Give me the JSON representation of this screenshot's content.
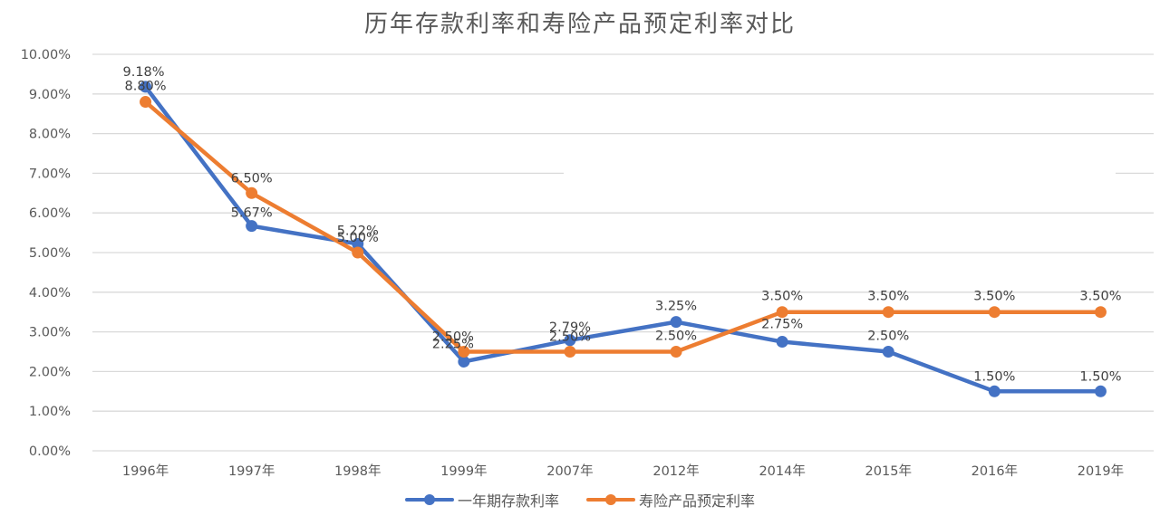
{
  "chart_data": {
    "type": "line",
    "title": "历年存款利率和寿险产品预定利率对比",
    "xlabel": "",
    "ylabel": "",
    "ylim": [
      0,
      0.1
    ],
    "yticks": [
      "0.00%",
      "1.00%",
      "2.00%",
      "3.00%",
      "4.00%",
      "5.00%",
      "6.00%",
      "7.00%",
      "8.00%",
      "9.00%",
      "10.00%"
    ],
    "grid": true,
    "legend_position": "bottom",
    "categories": [
      "1996年",
      "1997年",
      "1998年",
      "1999年",
      "2007年",
      "2012年",
      "2014年",
      "2015年",
      "2016年",
      "2019年"
    ],
    "series": [
      {
        "name": "一年期存款利率",
        "color": "#4472C4",
        "values": [
          9.18,
          5.67,
          5.22,
          2.25,
          2.79,
          3.25,
          2.75,
          2.5,
          1.5,
          1.5
        ],
        "labels": [
          "9.18%",
          "5.67%",
          "5.22%",
          "2.25%",
          "2.79%",
          "3.25%",
          "2.75%",
          "2.50%",
          "1.50%",
          "1.50%"
        ]
      },
      {
        "name": "寿险产品预定利率",
        "color": "#ED7D31",
        "values": [
          8.8,
          6.5,
          5.0,
          2.5,
          2.5,
          2.5,
          3.5,
          3.5,
          3.5,
          3.5
        ],
        "labels": [
          "8.80%",
          "6.50%",
          "5.00%",
          "2.50%",
          "2.50%",
          "2.50%",
          "3.50%",
          "3.50%",
          "3.50%",
          "3.50%"
        ]
      }
    ]
  },
  "legend": {
    "items": [
      {
        "label": "一年期存款利率",
        "color": "#4472C4"
      },
      {
        "label": "寿险产品预定利率",
        "color": "#ED7D31"
      }
    ]
  }
}
